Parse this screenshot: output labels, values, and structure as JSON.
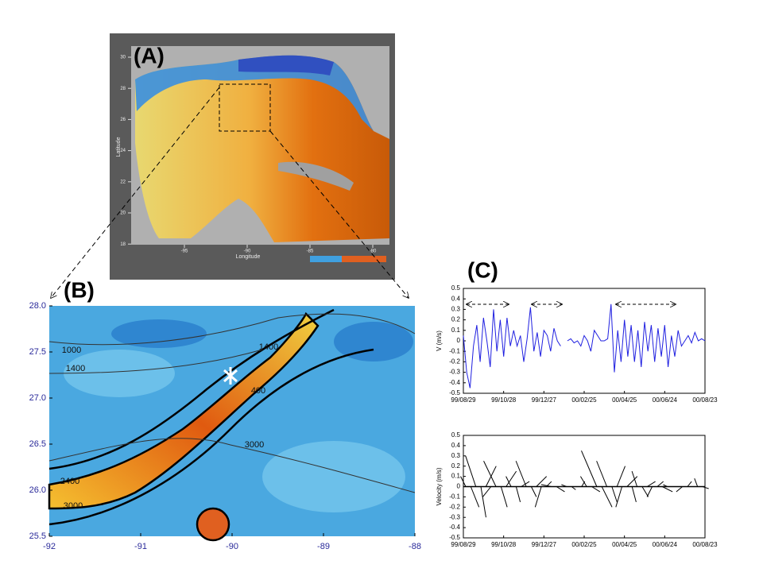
{
  "panel_labels": [
    "(A)",
    "(B)",
    "(C)"
  ],
  "map_a": {
    "xlabel": "Longitude",
    "ylabel": "Latitude",
    "xticks": [
      -95,
      -90,
      -85,
      -80
    ],
    "yticks": [
      30,
      28,
      26,
      24,
      22,
      20,
      18
    ]
  },
  "map_b": {
    "xticks": [
      -92,
      -91,
      -90,
      -89,
      -88
    ],
    "yticks": [
      {
        "value": 28,
        "label": "28.0"
      },
      27.5,
      {
        "value": 27,
        "label": "27.0"
      },
      26.5,
      {
        "value": 26,
        "label": "26.0"
      },
      25.5
    ],
    "contour_labels": [
      "1000",
      "1400",
      "1400",
      "400",
      "3000",
      "2400",
      "3000"
    ]
  },
  "chart_data": [
    {
      "type": "line",
      "ylabel": "V (m/s)",
      "color": "#1f1fe0",
      "values": [
        0.05,
        -0.3,
        -0.45,
        -0.05,
        0.15,
        -0.2,
        0.22,
        0.0,
        -0.25,
        0.3,
        -0.1,
        0.2,
        -0.15,
        0.22,
        -0.05,
        0.1,
        -0.05,
        0.05,
        -0.2,
        0.02,
        0.32,
        -0.1,
        0.08,
        -0.15,
        0.1,
        0.05,
        -0.1,
        0.12,
        0.0,
        -0.05,
        null,
        0.0,
        0.02,
        -0.02,
        0.0,
        -0.05,
        0.05,
        0.0,
        -0.1,
        0.1,
        0.05,
        0.0,
        0.0,
        0.02,
        0.35,
        -0.3,
        0.1,
        -0.2,
        0.2,
        -0.15,
        0.15,
        -0.2,
        0.1,
        -0.25,
        0.18,
        -0.1,
        0.15,
        -0.2,
        0.12,
        -0.15,
        0.15,
        -0.25,
        0.05,
        -0.15,
        0.1,
        -0.05,
        0.0,
        0.05,
        -0.02,
        0.08,
        0.0,
        0.02,
        0.0
      ],
      "ylim": [
        -0.5,
        0.5
      ],
      "yticks": [
        0.5,
        0.4,
        0.3,
        0.2,
        0.1,
        0,
        -0.1,
        -0.2,
        -0.3,
        -0.4,
        -0.5
      ],
      "xticks": [
        "99/08/29",
        "99/10/28",
        "99/12/27",
        "00/02/25",
        "00/04/25",
        "00/06/24",
        "00/08/23"
      ]
    },
    {
      "type": "stick",
      "ylabel": "Velocity (m/s)",
      "color": "#000000",
      "u": [
        -0.05,
        0.08,
        -0.1,
        0.05,
        0.1,
        -0.08,
        -0.12,
        0.06,
        0.1,
        -0.05,
        0.04,
        0.08,
        -0.1,
        0.05,
        0.1,
        -0.06,
        0.05,
        -0.1,
        0.08,
        0.06,
        -0.05,
        0.04,
        0.1,
        0.03,
        -0.06,
        0.08,
        -0.15,
        0.1,
        -0.1,
        0.05,
        0.08,
        -0.06,
        0.1,
        0.04,
        -0.05,
        0.06,
        0.08,
        -0.05,
        0.06,
        0.1,
        -0.04,
        0.05,
        0.08,
        -0.06,
        0.04,
        0.05,
        -0.03,
        0.06
      ],
      "v": [
        0.1,
        -0.2,
        0.3,
        -0.3,
        0.2,
        -0.1,
        0.25,
        -0.2,
        0.15,
        0.1,
        -0.15,
        0.05,
        0.25,
        -0.1,
        0.1,
        -0.2,
        0.05,
        0.02,
        -0.05,
        0.0,
        0.02,
        -0.03,
        0.0,
        0.05,
        0.1,
        -0.05,
        0.35,
        -0.2,
        0.25,
        -0.15,
        0.2,
        -0.2,
        0.1,
        -0.15,
        0.15,
        -0.1,
        0.05,
        -0.1,
        0.05,
        -0.05,
        0.02,
        0.0,
        0.0,
        -0.05,
        0.05,
        0.0,
        0.08,
        -0.02
      ],
      "ylim": [
        -0.5,
        0.5
      ],
      "yticks": [
        0.5,
        0.4,
        0.3,
        0.2,
        0.1,
        0,
        -0.1,
        -0.2,
        -0.3,
        -0.4,
        -0.5
      ],
      "xticks": [
        "99/08/29",
        "99/10/28",
        "99/12/27",
        "00/02/25",
        "00/04/25",
        "00/06/24",
        "00/08/23"
      ]
    }
  ]
}
